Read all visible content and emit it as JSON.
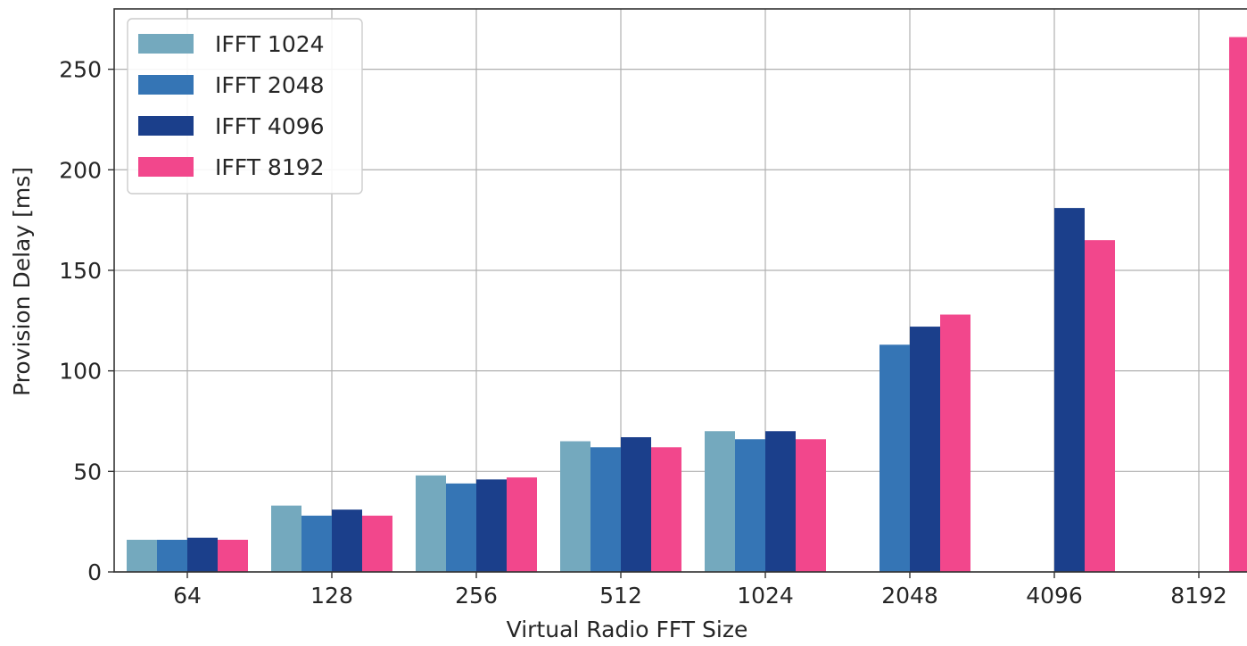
{
  "chart_data": {
    "type": "bar",
    "title": "",
    "xlabel": "Virtual Radio FFT Size",
    "ylabel": "Provision Delay [ms]",
    "categories": [
      "64",
      "128",
      "256",
      "512",
      "1024",
      "2048",
      "4096",
      "8192"
    ],
    "yticks": [
      "0",
      "50",
      "100",
      "150",
      "200",
      "250"
    ],
    "ylim": [
      0,
      280
    ],
    "grid": true,
    "legend_position": "top-left",
    "series": [
      {
        "name": "IFFT 1024",
        "color": "#74a9be",
        "values": [
          16,
          33,
          48,
          65,
          70,
          null,
          null,
          null
        ]
      },
      {
        "name": "IFFT 2048",
        "color": "#3575b5",
        "values": [
          16,
          28,
          44,
          62,
          66,
          113,
          null,
          null
        ]
      },
      {
        "name": "IFFT 4096",
        "color": "#1b3f8b",
        "values": [
          17,
          31,
          46,
          67,
          70,
          122,
          181,
          null
        ]
      },
      {
        "name": "IFFT 8192",
        "color": "#f2478c",
        "values": [
          16,
          28,
          47,
          62,
          66,
          128,
          165,
          266
        ]
      }
    ]
  }
}
